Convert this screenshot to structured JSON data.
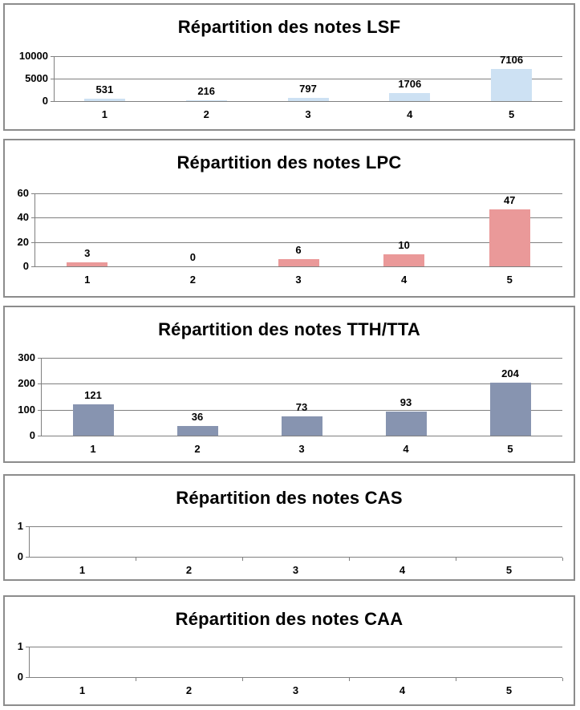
{
  "styles": {
    "grid_color": "#808080",
    "axis_color": "#808080",
    "panel_border_color": "#8c8c8c",
    "background": "#ffffff",
    "text_color": "#000000"
  },
  "chart_data": [
    {
      "type": "bar",
      "title": "Répartition des notes LSF",
      "categories": [
        "1",
        "2",
        "3",
        "4",
        "5"
      ],
      "values": [
        531,
        216,
        797,
        1706,
        7106
      ],
      "ylim": [
        0,
        10000
      ],
      "yticks": [
        0,
        5000,
        10000
      ],
      "ytick_labels": [
        "0",
        "5000",
        "10000"
      ],
      "bar_color": "#cde1f3",
      "grid": true,
      "legend": false,
      "value_labels_shown": true,
      "x_axis_ticks": false
    },
    {
      "type": "bar",
      "title": "Répartition des notes LPC",
      "categories": [
        "1",
        "2",
        "3",
        "4",
        "5"
      ],
      "values": [
        3,
        0,
        6,
        10,
        47
      ],
      "ylim": [
        0,
        60
      ],
      "yticks": [
        0,
        20,
        40,
        60
      ],
      "ytick_labels": [
        "0",
        "20",
        "40",
        "60"
      ],
      "bar_color": "#ea9999",
      "grid": true,
      "legend": false,
      "value_labels_shown": true,
      "x_axis_ticks": false
    },
    {
      "type": "bar",
      "title": "Répartition des notes TTH/TTA",
      "categories": [
        "1",
        "2",
        "3",
        "4",
        "5"
      ],
      "values": [
        121,
        36,
        73,
        93,
        204
      ],
      "ylim": [
        0,
        300
      ],
      "yticks": [
        0,
        100,
        200,
        300
      ],
      "ytick_labels": [
        "0",
        "100",
        "200",
        "300"
      ],
      "bar_color": "#8794b0",
      "grid": true,
      "legend": false,
      "value_labels_shown": true,
      "x_axis_ticks": false
    },
    {
      "type": "bar",
      "title": "Répartition des notes CAS",
      "categories": [
        "1",
        "2",
        "3",
        "4",
        "5"
      ],
      "values": [],
      "ylim": [
        0,
        1
      ],
      "yticks": [
        0,
        1
      ],
      "ytick_labels": [
        "0",
        "1"
      ],
      "bar_color": null,
      "grid": true,
      "legend": false,
      "value_labels_shown": false,
      "x_axis_ticks": true
    },
    {
      "type": "bar",
      "title": "Répartition des notes CAA",
      "categories": [
        "1",
        "2",
        "3",
        "4",
        "5"
      ],
      "values": [],
      "ylim": [
        0,
        1
      ],
      "yticks": [
        0,
        1
      ],
      "ytick_labels": [
        "0",
        "1"
      ],
      "bar_color": null,
      "grid": true,
      "legend": false,
      "value_labels_shown": false,
      "x_axis_ticks": true
    }
  ]
}
